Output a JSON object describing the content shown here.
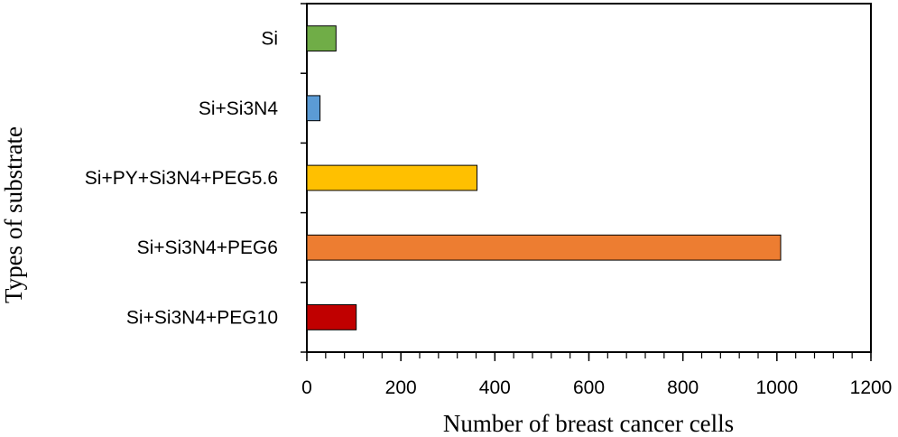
{
  "chart_data": {
    "type": "bar",
    "orientation": "horizontal",
    "categories": [
      "Si",
      "Si+Si3N4",
      "Si+PY+Si3N4+PEG5.6",
      "Si+Si3N4+PEG6",
      "Si+Si3N4+PEG10"
    ],
    "values": [
      62,
      28,
      362,
      1008,
      105
    ],
    "colors": [
      "#70ad47",
      "#5b9bd5",
      "#ffc000",
      "#ed7d31",
      "#c00000"
    ],
    "xlabel": "Number of breast cancer cells",
    "ylabel": "Types of substrate",
    "xlim": [
      0,
      1200
    ],
    "xticks": [
      "0",
      "200",
      "400",
      "600",
      "800",
      "1000",
      "1200"
    ],
    "minor_tick_step": 40,
    "grid": false,
    "legend": "none"
  }
}
